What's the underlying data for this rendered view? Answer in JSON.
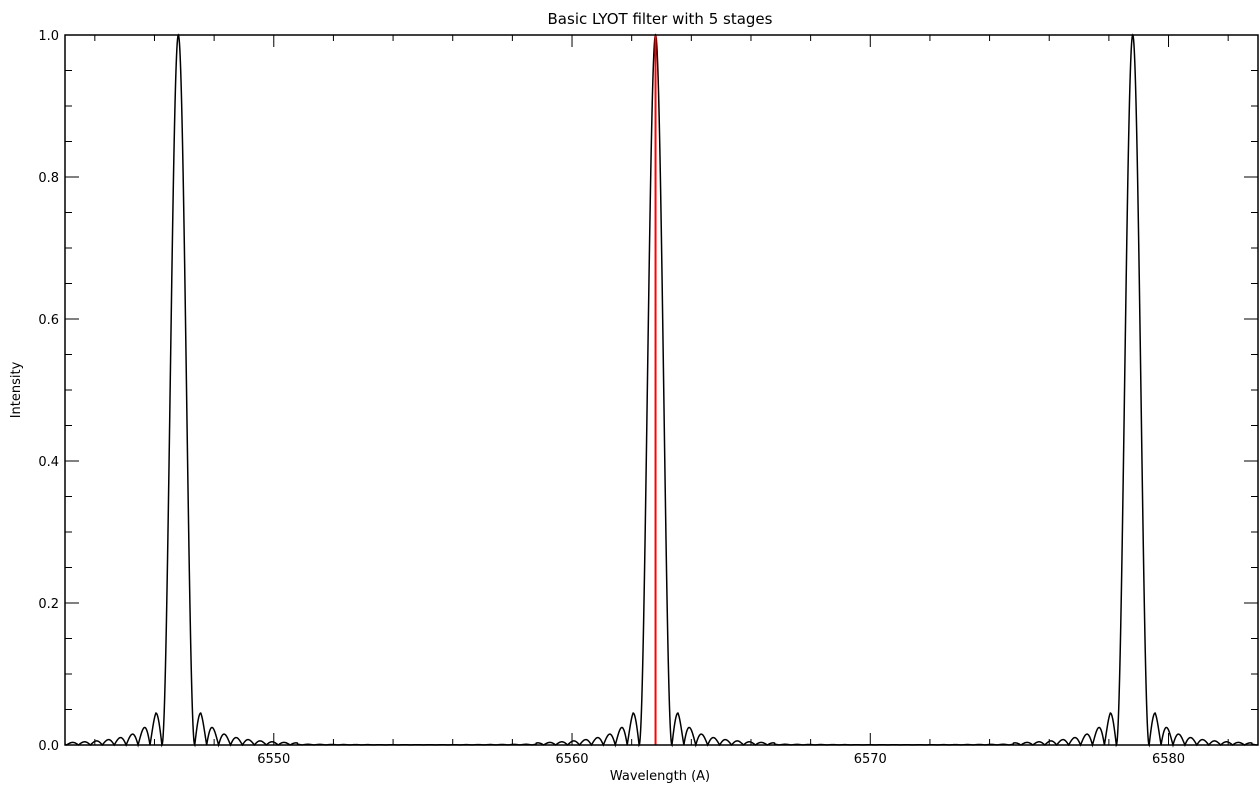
{
  "chart_data": {
    "type": "line",
    "title": "Basic LYOT filter with 5 stages",
    "xlabel": "Wavelength (A)",
    "ylabel": "Intensity",
    "xlim": [
      6543,
      6583
    ],
    "ylim": [
      0,
      1.0
    ],
    "x_ticks": [
      6550,
      6560,
      6570,
      6580
    ],
    "x_tick_labels": [
      "6550",
      "6560",
      "6570",
      "6580"
    ],
    "y_ticks": [
      0.0,
      0.2,
      0.4,
      0.6,
      0.8,
      1.0
    ],
    "y_tick_labels": [
      "0.0",
      "0.2",
      "0.4",
      "0.6",
      "0.8",
      "1.0"
    ],
    "grid": false,
    "series": [
      {
        "color": "#000000",
        "transmission_peaks": [
          6546.8,
          6562.8,
          6578.8
        ],
        "peak_value": 1.0,
        "main_peak_halfwidth": 0.55,
        "first_sidelobe_offset": 0.75,
        "first_sidelobe_value": 0.045,
        "second_sidelobe_offset": 1.15,
        "second_sidelobe_value": 0.015
      }
    ],
    "annotations": [
      {
        "type": "vertical-line",
        "x": 6562.8,
        "color": "#ff0000"
      }
    ]
  }
}
